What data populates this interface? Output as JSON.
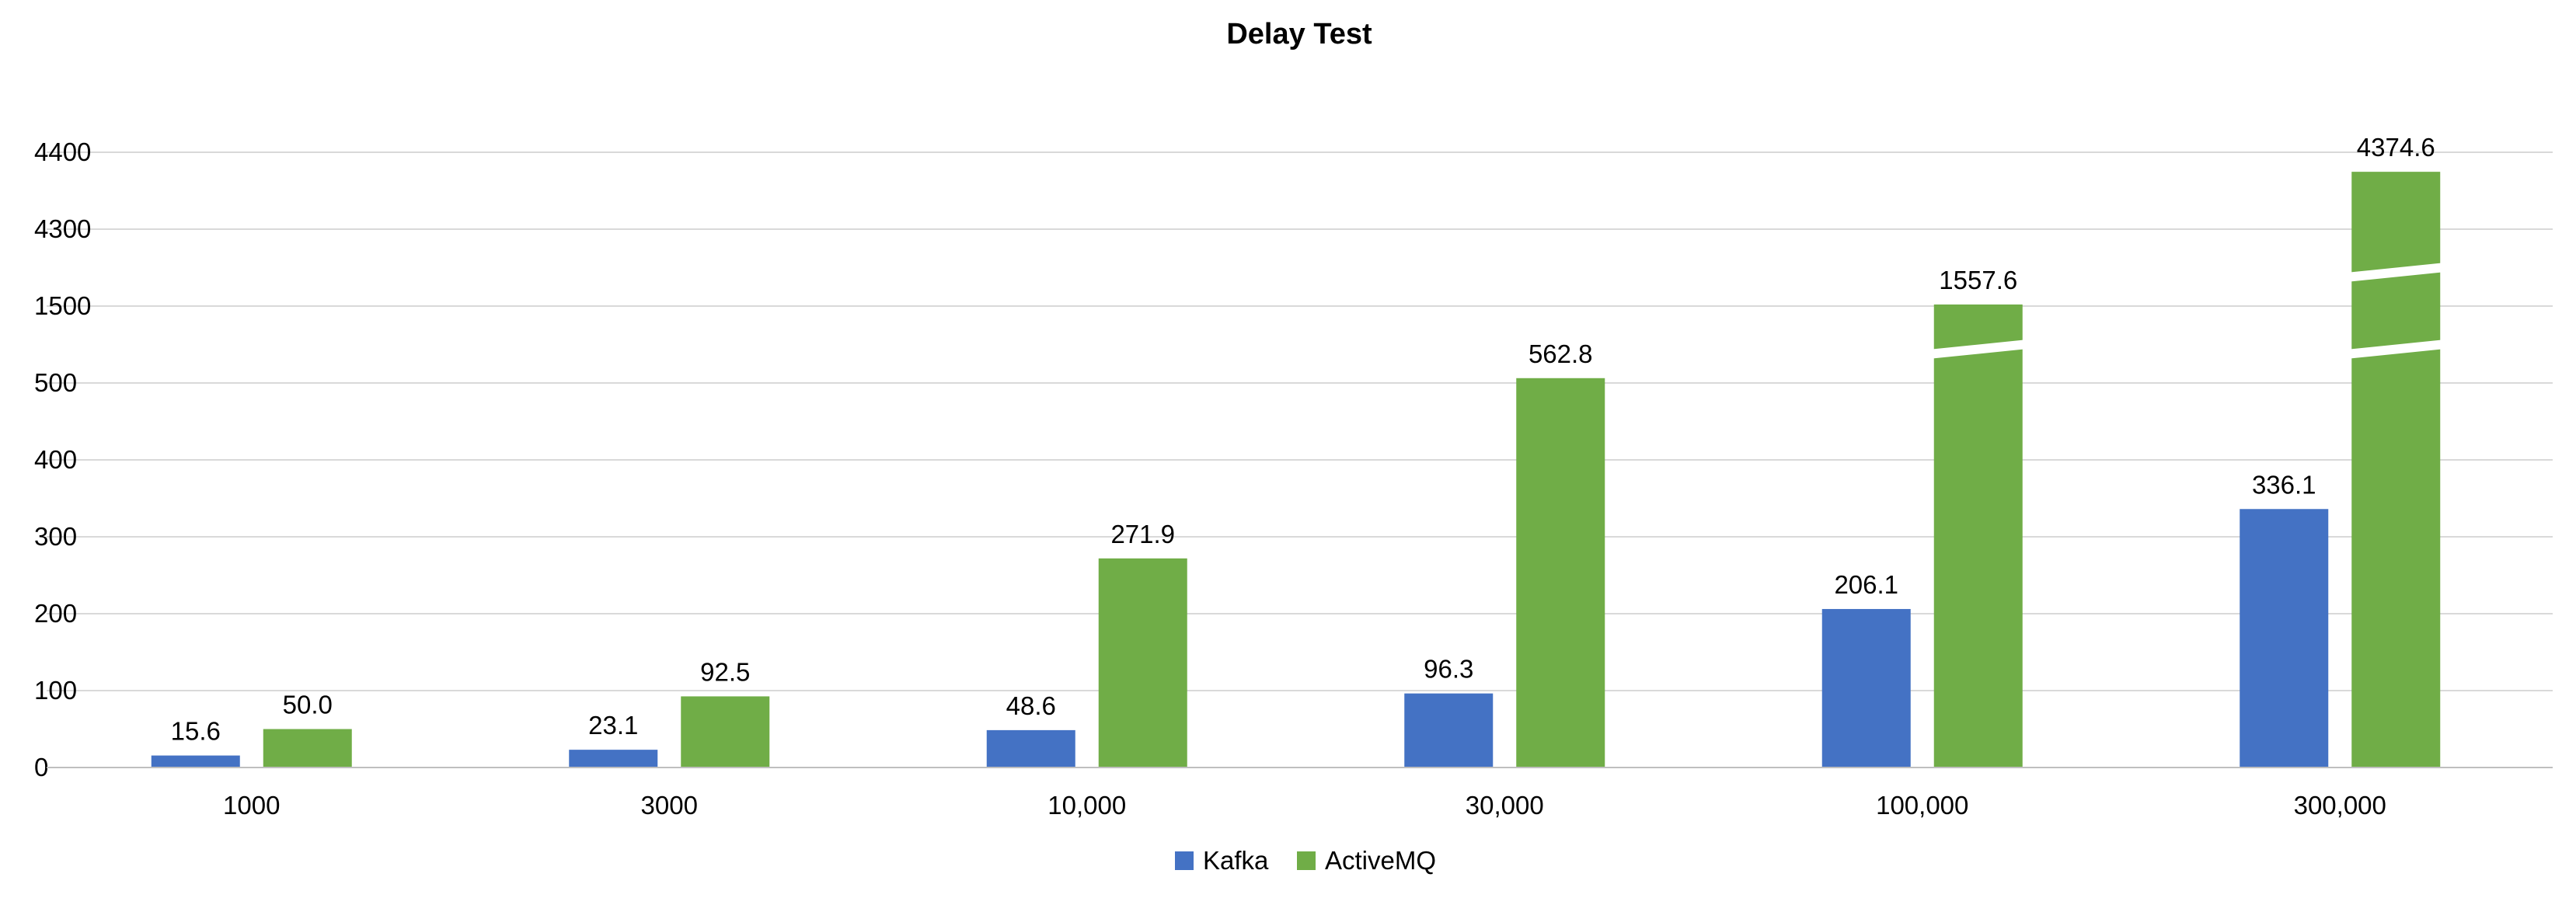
{
  "chart_data": {
    "type": "bar",
    "title": "Delay Test",
    "xlabel": "",
    "ylabel": "",
    "categories": [
      "1000",
      "3000",
      "10,000",
      "30,000",
      "100,000",
      "300,000"
    ],
    "y_tick_labels": [
      "0",
      "100",
      "200",
      "300",
      "400",
      "500",
      "1500",
      "4300",
      "4400"
    ],
    "axis_breaks": "broken y-axis; bars exceeding scale drawn with white break slashes",
    "grid": true,
    "legend_position": "bottom-center",
    "series": [
      {
        "name": "Kafka",
        "color": "#4472c4",
        "values": [
          15.6,
          23.1,
          48.6,
          96.3,
          206.1,
          336.1
        ],
        "labels": [
          "15.6",
          "23.1",
          "48.6",
          "96.3",
          "206.1",
          "336.1"
        ]
      },
      {
        "name": "ActiveMQ",
        "color": "#70ad47",
        "values": [
          50.0,
          92.5,
          271.9,
          562.8,
          1557.6,
          4374.6
        ],
        "labels": [
          "50.0",
          "92.5",
          "271.9",
          "562.8",
          "1557.6",
          "4374.6"
        ]
      }
    ]
  }
}
